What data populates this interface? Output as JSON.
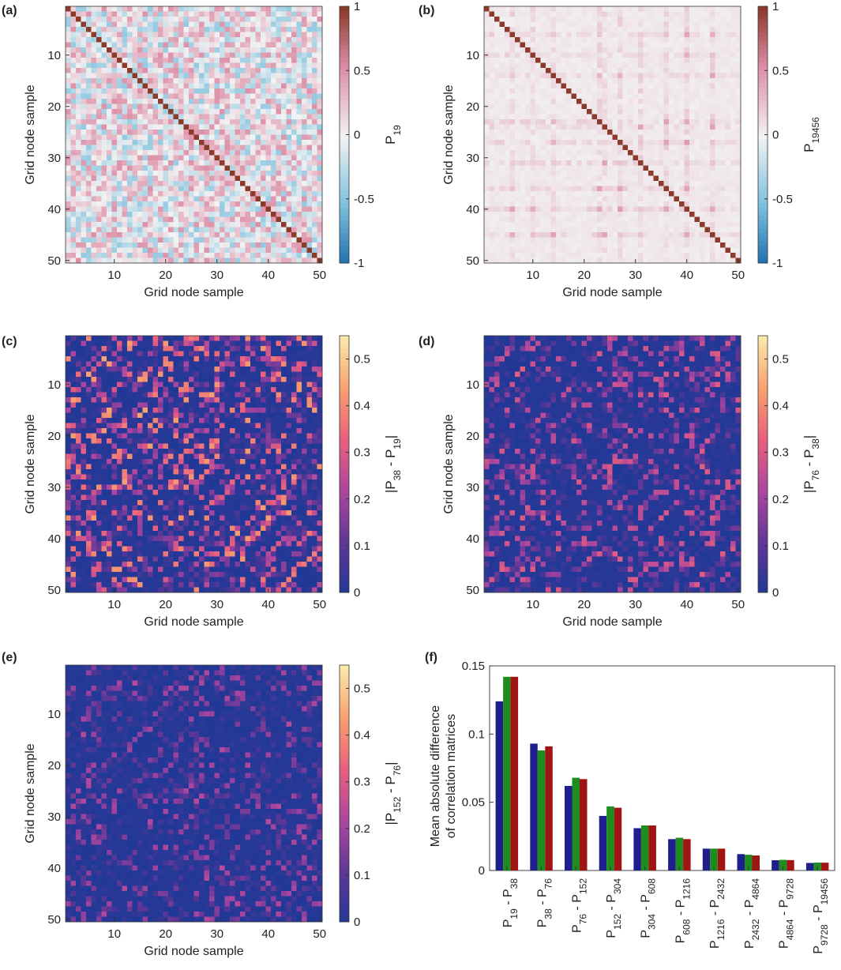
{
  "figure": {
    "panels": [
      {
        "label": "(a)",
        "cbar_label": "P",
        "cbar_sub": "19"
      },
      {
        "label": "(b)",
        "cbar_label": "P",
        "cbar_sub": "19456"
      },
      {
        "label": "(c)",
        "cbar_label_parts": [
          "|P",
          "38",
          " - P",
          "19",
          "|"
        ]
      },
      {
        "label": "(d)",
        "cbar_label_parts": [
          "|P",
          "76",
          " - P",
          "38",
          "|"
        ]
      },
      {
        "label": "(e)",
        "cbar_label_parts": [
          "|P",
          "152",
          " - P",
          "76",
          "|"
        ]
      }
    ],
    "axis_label": "Grid node sample",
    "corr_ticks": [
      "1",
      "0.5",
      "0",
      "-0.5",
      "-1"
    ],
    "diff_ticks": [
      "0.5",
      "0.4",
      "0.3",
      "0.2",
      "0.1",
      "0"
    ],
    "grid_ticks": [
      "10",
      "20",
      "30",
      "40",
      "50"
    ],
    "colors": {
      "corr_neg": "#1f6fae",
      "corr_mid": "#f2f2f2",
      "corr_pos": "#8c3a2a",
      "diag": "#8c3a2a",
      "blue": "#1e1e8c",
      "green": "#1e8c1e",
      "red": "#a01414"
    }
  },
  "chart_data": [
    {
      "type": "heatmap",
      "panel": "(a)",
      "title": "",
      "xlabel": "Grid node sample",
      "ylabel": "Grid node sample",
      "size": 50,
      "colorbar": "P_19",
      "clim": [
        -1,
        1
      ],
      "note": "correlation matrix, diagonal = 1, off-diagonal mixed approx -0.5..0.5"
    },
    {
      "type": "heatmap",
      "panel": "(b)",
      "title": "",
      "xlabel": "Grid node sample",
      "ylabel": "Grid node sample",
      "size": 50,
      "colorbar": "P_19456",
      "clim": [
        -1,
        1
      ],
      "note": "correlation matrix, diagonal = 1, off-diagonal mostly 0..0.3"
    },
    {
      "type": "heatmap",
      "panel": "(c)",
      "xlabel": "Grid node sample",
      "ylabel": "Grid node sample",
      "size": 50,
      "colorbar": "|P_38 - P_19|",
      "clim": [
        0,
        0.55
      ]
    },
    {
      "type": "heatmap",
      "panel": "(d)",
      "xlabel": "Grid node sample",
      "ylabel": "Grid node sample",
      "size": 50,
      "colorbar": "|P_76 - P_38|",
      "clim": [
        0,
        0.55
      ]
    },
    {
      "type": "heatmap",
      "panel": "(e)",
      "xlabel": "Grid node sample",
      "ylabel": "Grid node sample",
      "size": 50,
      "colorbar": "|P_152 - P_76|",
      "clim": [
        0,
        0.55
      ]
    },
    {
      "type": "bar",
      "panel": "(f)",
      "ylabel_lines": [
        "Mean absolute difference",
        "of correlation matrices"
      ],
      "ylim": [
        0,
        0.15
      ],
      "yticks": [
        "0",
        "0.05",
        "0.1",
        "0.15"
      ],
      "categories": [
        [
          "19",
          "38"
        ],
        [
          "38",
          "76"
        ],
        [
          "76",
          "152"
        ],
        [
          "152",
          "304"
        ],
        [
          "304",
          "608"
        ],
        [
          "608",
          "1216"
        ],
        [
          "1216",
          "2432"
        ],
        [
          "2432",
          "4864"
        ],
        [
          "4864",
          "9728"
        ],
        [
          "9728",
          "19456"
        ]
      ],
      "series": [
        {
          "name": "blue",
          "values": [
            0.124,
            0.093,
            0.062,
            0.04,
            0.031,
            0.023,
            0.016,
            0.012,
            0.0075,
            0.0055
          ]
        },
        {
          "name": "green",
          "values": [
            0.142,
            0.088,
            0.068,
            0.047,
            0.033,
            0.024,
            0.016,
            0.0115,
            0.0078,
            0.0058
          ]
        },
        {
          "name": "red",
          "values": [
            0.142,
            0.091,
            0.067,
            0.046,
            0.033,
            0.023,
            0.016,
            0.011,
            0.0076,
            0.0057
          ]
        }
      ]
    }
  ]
}
